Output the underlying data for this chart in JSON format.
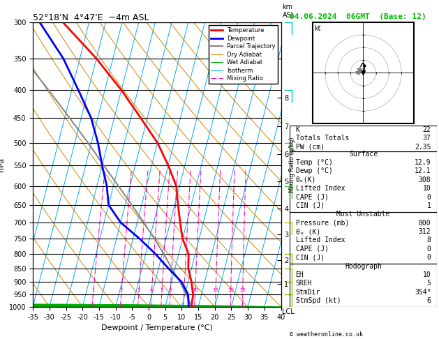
{
  "title_left": "52°18'N  4°47'E  −4m ASL",
  "title_right": "04.06.2024  06GMT  (Base: 12)",
  "xlabel": "Dewpoint / Temperature (°C)",
  "ylabel_left": "hPa",
  "pressure_levels": [
    300,
    350,
    400,
    450,
    500,
    550,
    600,
    650,
    700,
    750,
    800,
    850,
    900,
    950,
    1000
  ],
  "xlim": [
    -35,
    40
  ],
  "pressure_min": 300,
  "pressure_max": 1000,
  "skew": 22,
  "temp_profile": {
    "pressure": [
      1000,
      950,
      900,
      850,
      800,
      750,
      700,
      650,
      600,
      550,
      500,
      450,
      400,
      350,
      300
    ],
    "temp": [
      12.9,
      12.5,
      11.0,
      9.0,
      8.0,
      5.0,
      3.0,
      1.0,
      -1.0,
      -5.0,
      -10.0,
      -17.0,
      -25.0,
      -35.0,
      -48.0
    ]
  },
  "dewp_profile": {
    "pressure": [
      1000,
      950,
      900,
      850,
      800,
      750,
      700,
      650,
      600,
      550,
      500,
      450,
      400,
      350,
      300
    ],
    "temp": [
      12.1,
      11.0,
      8.0,
      3.0,
      -2.0,
      -8.0,
      -15.0,
      -20.0,
      -22.0,
      -25.0,
      -28.0,
      -32.0,
      -38.0,
      -45.0,
      -55.0
    ]
  },
  "parcel_profile": {
    "pressure": [
      1000,
      950,
      900,
      850,
      800,
      750,
      700,
      650,
      600,
      550,
      500,
      450,
      400,
      350,
      300
    ],
    "temp": [
      12.9,
      10.5,
      7.5,
      4.0,
      0.5,
      -3.5,
      -8.0,
      -13.0,
      -18.5,
      -24.5,
      -31.0,
      -38.5,
      -47.0,
      -57.0,
      -68.0
    ]
  },
  "isotherms": [
    -40,
    -35,
    -30,
    -25,
    -20,
    -15,
    -10,
    -5,
    0,
    5,
    10,
    15,
    20,
    25,
    30,
    35,
    40,
    45,
    50
  ],
  "dry_adiabat_T0s": [
    -40,
    -30,
    -20,
    -10,
    0,
    10,
    20,
    30,
    40,
    50,
    60,
    70,
    80,
    90,
    100
  ],
  "wet_adiabat_T0s": [
    -20,
    -15,
    -10,
    -5,
    0,
    5,
    10,
    15,
    20,
    25,
    30,
    35,
    40
  ],
  "mixing_ratios": [
    1,
    2,
    3,
    4,
    5,
    6,
    8,
    10,
    15,
    20,
    25
  ],
  "km_ticks": [
    1,
    2,
    3,
    4,
    5,
    6,
    7,
    8
  ],
  "km_pressures": [
    907,
    820,
    737,
    660,
    588,
    524,
    466,
    413
  ],
  "legend_items": [
    {
      "label": "Temperature",
      "color": "#ff0000",
      "lw": 2.0,
      "ls": "-"
    },
    {
      "label": "Dewpoint",
      "color": "#0000ff",
      "lw": 2.0,
      "ls": "-"
    },
    {
      "label": "Parcel Trajectory",
      "color": "#888888",
      "lw": 1.5,
      "ls": "-"
    },
    {
      "label": "Dry Adiabat",
      "color": "#cc8800",
      "lw": 0.8,
      "ls": "-"
    },
    {
      "label": "Wet Adiabat",
      "color": "#00aa00",
      "lw": 0.8,
      "ls": "-"
    },
    {
      "label": "Isotherm",
      "color": "#00aaff",
      "lw": 0.8,
      "ls": "-"
    },
    {
      "label": "Mixing Ratio",
      "color": "#ff00bb",
      "lw": 0.8,
      "ls": "-."
    }
  ],
  "info": {
    "K": "22",
    "Totals Totals": "37",
    "PW (cm)": "2.35",
    "Temp (°C)": "12.9",
    "Dewp (°C)": "12.1",
    "θe(K)": "308",
    "Lifted Index surf": "10",
    "CAPE surf": "0",
    "CIN surf": "1",
    "Pressure (mb)": "800",
    "θe MU (K)": "312",
    "Lifted Index MU": "8",
    "CAPE MU": "0",
    "CIN MU": "0",
    "EH": "10",
    "SREH": "5",
    "StmDir": "354°",
    "StmSpd (kt)": "6"
  },
  "wind_barbs": [
    {
      "pressure": 300,
      "u": 0,
      "v": 6,
      "color": "#00cccc"
    },
    {
      "pressure": 400,
      "u": 0,
      "v": 5,
      "color": "#00cccc"
    },
    {
      "pressure": 500,
      "u": 0,
      "v": 5,
      "color": "#44cc44"
    },
    {
      "pressure": 600,
      "u": 0,
      "v": 5,
      "color": "#44cc44"
    },
    {
      "pressure": 700,
      "u": -1,
      "v": 4,
      "color": "#cccc00"
    },
    {
      "pressure": 800,
      "u": 0,
      "v": 3,
      "color": "#88cc00"
    },
    {
      "pressure": 850,
      "u": 1,
      "v": 3,
      "color": "#88cc00"
    },
    {
      "pressure": 900,
      "u": 1,
      "v": 3,
      "color": "#88cc00"
    },
    {
      "pressure": 950,
      "u": 2,
      "v": 4,
      "color": "#88cc00"
    },
    {
      "pressure": 1000,
      "u": 2,
      "v": 3,
      "color": "#cccc00"
    }
  ]
}
